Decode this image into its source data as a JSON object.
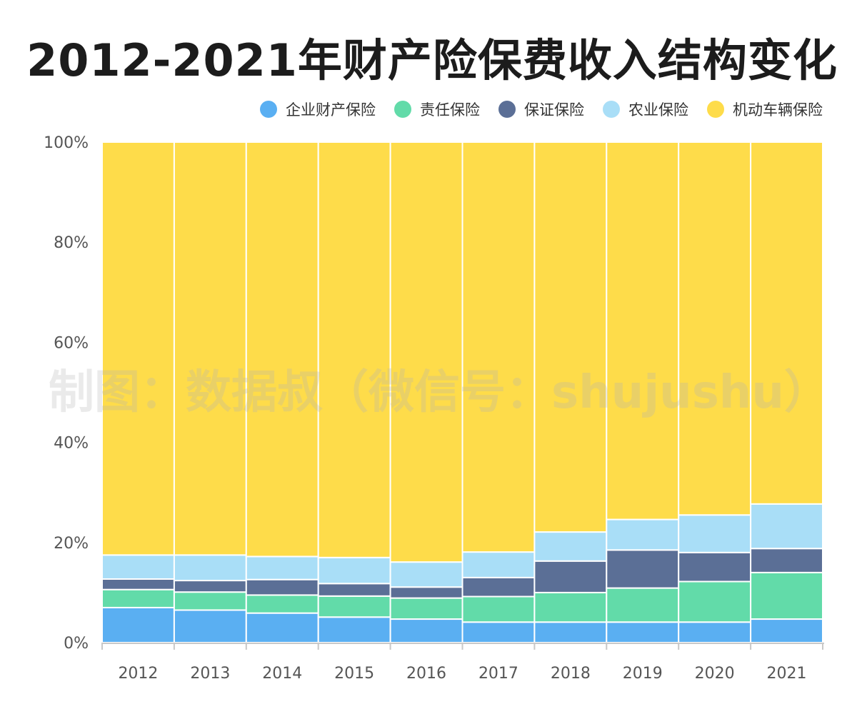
{
  "chart_data": {
    "type": "bar",
    "stacked": true,
    "normalized": true,
    "title": "2012-2021年财产险保费收入结构变化",
    "categories": [
      "2012",
      "2013",
      "2014",
      "2015",
      "2016",
      "2017",
      "2018",
      "2019",
      "2020",
      "2021"
    ],
    "series": [
      {
        "name": "企业财产保险",
        "color": "#5aaff2",
        "values": [
          7.0,
          6.5,
          5.9,
          5.1,
          4.7,
          4.1,
          4.1,
          4.1,
          4.1,
          4.7
        ]
      },
      {
        "name": "责任保险",
        "color": "#62dba9",
        "values": [
          3.6,
          3.6,
          3.6,
          4.2,
          4.2,
          5.1,
          5.9,
          6.8,
          8.1,
          9.3
        ]
      },
      {
        "name": "保证保险",
        "color": "#5b6f96",
        "values": [
          2.1,
          2.3,
          3.1,
          2.5,
          2.2,
          3.8,
          6.3,
          7.6,
          5.8,
          4.8
        ]
      },
      {
        "name": "农业保险",
        "color": "#a9def7",
        "values": [
          4.8,
          5.1,
          4.6,
          5.2,
          5.0,
          5.1,
          5.8,
          6.1,
          7.5,
          8.9
        ]
      },
      {
        "name": "机动车辆保险",
        "color": "#fedc4a",
        "values": [
          82.5,
          82.5,
          82.8,
          83.0,
          83.9,
          81.9,
          77.9,
          75.4,
          74.5,
          72.3
        ]
      }
    ],
    "yaxis": {
      "min": 0,
      "max": 100,
      "ticks": [
        0,
        20,
        40,
        60,
        80,
        100
      ],
      "tick_labels": [
        "0%",
        "20%",
        "40%",
        "60%",
        "80%",
        "100%"
      ]
    },
    "legend_position": "top-right",
    "grid": false,
    "watermark": "制图：数据叔（微信号：shujushu）"
  }
}
